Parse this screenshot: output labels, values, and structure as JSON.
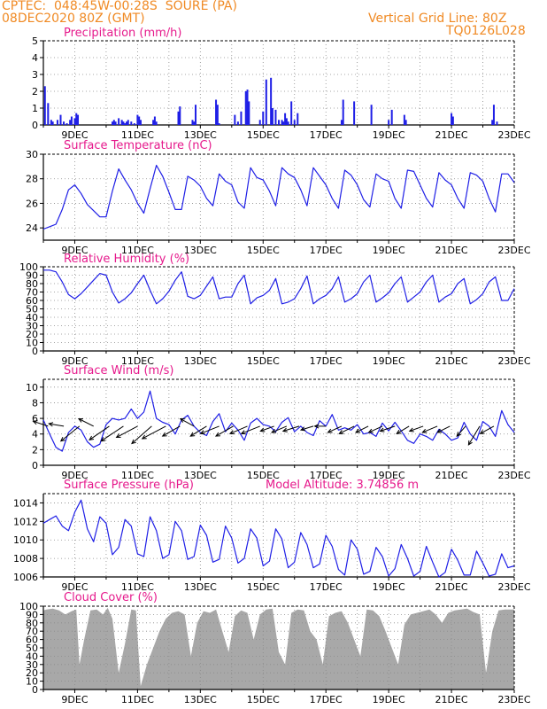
{
  "header": {
    "line1": "CPTEC:  048:45W-00:28S  SOURE (PA)",
    "line2": "08DEC2020 80Z (GMT)",
    "right1": "Vertical Grid Line: 80Z",
    "right2": "TQ0126L028"
  },
  "colors": {
    "series": "#1f1fe6",
    "title": "#e61a8c",
    "header": "#f08a24",
    "cloud": "#a8a8a8",
    "grid": "#8a8a8a"
  },
  "chart_data": [
    {
      "type": "bar",
      "title": "Precipitation (mm/h)",
      "xlabel": "",
      "ylabel": "",
      "x_tick_labels": [
        "9DEC",
        "11DEC",
        "13DEC",
        "15DEC",
        "17DEC",
        "19DEC",
        "21DEC",
        "23DEC"
      ],
      "ylim": [
        0,
        5
      ],
      "y_ticks": [
        0,
        1,
        2,
        3,
        4,
        5
      ],
      "grid": true,
      "x": [
        0.05,
        0.15,
        0.25,
        0.3,
        0.45,
        0.55,
        0.65,
        0.75,
        0.85,
        0.9,
        1.0,
        1.05,
        1.1,
        2.2,
        2.25,
        2.3,
        2.4,
        2.5,
        2.55,
        2.6,
        2.65,
        2.7,
        2.8,
        2.9,
        3.0,
        3.05,
        3.1,
        3.5,
        3.55,
        3.6,
        4.3,
        4.35,
        4.75,
        4.8,
        4.85,
        5.5,
        5.55,
        5.6,
        6.1,
        6.2,
        6.3,
        6.45,
        6.5,
        6.55,
        6.9,
        7.0,
        7.1,
        7.25,
        7.3,
        7.4,
        7.5,
        7.6,
        7.65,
        7.7,
        7.75,
        7.8,
        7.9,
        8.0,
        8.1,
        9.5,
        9.55,
        9.9,
        10.45,
        11.0,
        11.1,
        11.5,
        11.55,
        13.0,
        13.05,
        14.3,
        14.35,
        14.45
      ],
      "values": [
        2.3,
        1.3,
        0.3,
        0.2,
        0.3,
        0.6,
        0.2,
        0.1,
        0.3,
        0.5,
        0.4,
        0.7,
        0.6,
        0.2,
        0.3,
        0.2,
        0.4,
        0.3,
        0.2,
        0.1,
        0.2,
        0.3,
        0.2,
        0.1,
        0.6,
        0.5,
        0.3,
        0.3,
        0.5,
        0.2,
        0.8,
        1.1,
        0.3,
        0.2,
        1.2,
        1.5,
        1.2,
        0.1,
        0.6,
        0.2,
        0.8,
        2.0,
        2.1,
        1.4,
        0.3,
        0.8,
        2.7,
        2.8,
        1.0,
        0.9,
        0.3,
        0.3,
        0.2,
        0.7,
        0.4,
        0.2,
        1.4,
        0.3,
        0.7,
        0.3,
        1.5,
        1.4,
        1.2,
        0.3,
        0.9,
        0.6,
        0.3,
        0.7,
        0.5,
        0.3,
        1.2,
        0.2
      ]
    },
    {
      "type": "line",
      "title": "Surface Temperature (nC)",
      "x_tick_labels": [
        "9DEC",
        "11DEC",
        "13DEC",
        "15DEC",
        "17DEC",
        "19DEC",
        "21DEC",
        "23DEC"
      ],
      "ylim": [
        23,
        30
      ],
      "y_ticks": [
        24,
        26,
        28,
        30
      ],
      "grid": true,
      "x": [
        0,
        0.2,
        0.4,
        0.6,
        0.8,
        1.0,
        1.2,
        1.4,
        1.6,
        1.8,
        2.0,
        2.2,
        2.4,
        2.6,
        2.8,
        3.0,
        3.2,
        3.4,
        3.6,
        3.8,
        4.0,
        4.2,
        4.4,
        4.6,
        4.8,
        5.0,
        5.2,
        5.4,
        5.6,
        5.8,
        6.0,
        6.2,
        6.4,
        6.6,
        6.8,
        7.0,
        7.2,
        7.4,
        7.6,
        7.8,
        8.0,
        8.2,
        8.4,
        8.6,
        8.8,
        9.0,
        9.2,
        9.4,
        9.6,
        9.8,
        10.0,
        10.2,
        10.4,
        10.6,
        10.8,
        11.0,
        11.2,
        11.4,
        11.6,
        11.8,
        12.0,
        12.2,
        12.4,
        12.6,
        12.8,
        13.0,
        13.2,
        13.4,
        13.6,
        13.8,
        14.0,
        14.2,
        14.4,
        14.6,
        14.8,
        15.0
      ],
      "values": [
        23.9,
        24.1,
        24.3,
        25.5,
        27.1,
        27.5,
        26.8,
        25.9,
        25.4,
        24.9,
        24.9,
        27.0,
        28.8,
        27.9,
        27.1,
        26.0,
        25.2,
        27.2,
        29.1,
        28.2,
        26.9,
        25.5,
        25.5,
        28.2,
        27.9,
        27.4,
        26.4,
        25.8,
        28.4,
        27.8,
        27.5,
        26.1,
        25.6,
        28.9,
        28.1,
        27.9,
        27.0,
        25.8,
        28.9,
        28.4,
        28.1,
        27.1,
        25.8,
        28.9,
        28.2,
        27.5,
        26.4,
        25.6,
        28.7,
        28.3,
        27.5,
        26.3,
        25.7,
        28.4,
        28.0,
        27.8,
        26.4,
        25.6,
        28.7,
        28.6,
        27.5,
        26.4,
        25.7,
        28.5,
        27.9,
        27.5,
        26.4,
        25.6,
        28.5,
        28.3,
        27.8,
        26.4,
        25.3,
        28.4,
        28.4,
        27.7
      ]
    },
    {
      "type": "line",
      "title": "Relative Humidity (%)",
      "x_tick_labels": [
        "9DEC",
        "11DEC",
        "13DEC",
        "15DEC",
        "17DEC",
        "19DEC",
        "21DEC",
        "23DEC"
      ],
      "ylim": [
        0,
        100
      ],
      "y_ticks": [
        0,
        10,
        20,
        30,
        40,
        50,
        60,
        70,
        80,
        90,
        100
      ],
      "grid": true,
      "x": [
        0,
        0.2,
        0.4,
        0.6,
        0.8,
        1.0,
        1.2,
        1.4,
        1.6,
        1.8,
        2.0,
        2.2,
        2.4,
        2.6,
        2.8,
        3.0,
        3.2,
        3.4,
        3.6,
        3.8,
        4.0,
        4.2,
        4.4,
        4.6,
        4.8,
        5.0,
        5.2,
        5.4,
        5.6,
        5.8,
        6.0,
        6.2,
        6.4,
        6.6,
        6.8,
        7.0,
        7.2,
        7.4,
        7.6,
        7.8,
        8.0,
        8.2,
        8.4,
        8.6,
        8.8,
        9.0,
        9.2,
        9.4,
        9.6,
        9.8,
        10.0,
        10.2,
        10.4,
        10.6,
        10.8,
        11.0,
        11.2,
        11.4,
        11.6,
        11.8,
        12.0,
        12.2,
        12.4,
        12.6,
        12.8,
        13.0,
        13.2,
        13.4,
        13.6,
        13.8,
        14.0,
        14.2,
        14.4,
        14.6,
        14.8,
        15.0
      ],
      "values": [
        96,
        96,
        94,
        82,
        67,
        62,
        68,
        76,
        84,
        92,
        90,
        70,
        57,
        62,
        69,
        80,
        90,
        72,
        56,
        62,
        71,
        84,
        94,
        65,
        62,
        66,
        77,
        88,
        62,
        64,
        64,
        80,
        90,
        56,
        63,
        66,
        72,
        86,
        56,
        58,
        62,
        74,
        89,
        56,
        62,
        66,
        74,
        88,
        58,
        62,
        68,
        82,
        90,
        58,
        63,
        69,
        80,
        88,
        58,
        64,
        70,
        82,
        90,
        58,
        64,
        68,
        80,
        86,
        56,
        61,
        68,
        82,
        88,
        60,
        60,
        74
      ]
    },
    {
      "type": "line",
      "title": "Surface Wind (m/s)",
      "x_tick_labels": [
        "9DEC",
        "11DEC",
        "13DEC",
        "15DEC",
        "17DEC",
        "19DEC",
        "21DEC",
        "23DEC"
      ],
      "ylim": [
        0,
        11
      ],
      "y_ticks": [
        0,
        2,
        4,
        6,
        8,
        10
      ],
      "grid": true,
      "x": [
        0,
        0.2,
        0.4,
        0.6,
        0.8,
        1.0,
        1.2,
        1.4,
        1.6,
        1.8,
        2.0,
        2.2,
        2.4,
        2.6,
        2.8,
        3.0,
        3.2,
        3.4,
        3.6,
        3.8,
        4.0,
        4.2,
        4.4,
        4.6,
        4.8,
        5.0,
        5.2,
        5.4,
        5.6,
        5.8,
        6.0,
        6.2,
        6.4,
        6.6,
        6.8,
        7.0,
        7.2,
        7.4,
        7.6,
        7.8,
        8.0,
        8.2,
        8.4,
        8.6,
        8.8,
        9.0,
        9.2,
        9.4,
        9.6,
        9.8,
        10.0,
        10.2,
        10.4,
        10.6,
        10.8,
        11.0,
        11.2,
        11.4,
        11.6,
        11.8,
        12.0,
        12.2,
        12.4,
        12.6,
        12.8,
        13.0,
        13.2,
        13.4,
        13.6,
        13.8,
        14.0,
        14.2,
        14.4,
        14.6,
        14.8,
        15.0
      ],
      "values": [
        5.8,
        4.0,
        2.3,
        1.8,
        4.2,
        5.0,
        4.5,
        3.0,
        2.3,
        2.7,
        5.2,
        6.0,
        5.8,
        6.0,
        7.2,
        6.0,
        6.8,
        9.5,
        6.0,
        5.5,
        5.2,
        4.0,
        5.8,
        6.4,
        5.0,
        4.2,
        3.8,
        5.6,
        6.6,
        4.3,
        5.4,
        4.5,
        3.2,
        5.4,
        6.0,
        5.2,
        5.0,
        4.3,
        5.5,
        6.1,
        4.3,
        5.0,
        4.2,
        3.8,
        5.7,
        5.0,
        6.5,
        4.5,
        4.8,
        4.5,
        5.2,
        4.0,
        4.2,
        3.7,
        5.4,
        4.4,
        5.5,
        4.4,
        3.2,
        2.8,
        4.0,
        3.7,
        3.2,
        4.6,
        4.0,
        3.2,
        3.5,
        5.5,
        4.0,
        3.2,
        5.6,
        5.0,
        3.7,
        7.0,
        5.2,
        4.2
      ],
      "arrows": [
        {
          "x": 0.15,
          "u": 1.2,
          "v": 0.4
        },
        {
          "x": 0.65,
          "u": 1.2,
          "v": 0.2
        },
        {
          "x": 1.15,
          "u": 1.5,
          "v": -1.2
        },
        {
          "x": 1.6,
          "u": 1.2,
          "v": 0.6
        },
        {
          "x": 2.1,
          "u": 1.6,
          "v": -1.1
        },
        {
          "x": 2.55,
          "u": 1.8,
          "v": -1.2
        },
        {
          "x": 3.0,
          "u": 1.7,
          "v": -0.9
        },
        {
          "x": 3.45,
          "u": 1.6,
          "v": -1.4
        },
        {
          "x": 3.9,
          "u": 1.9,
          "v": -1.0
        },
        {
          "x": 4.35,
          "u": 1.4,
          "v": -0.8
        },
        {
          "x": 4.8,
          "u": 1.1,
          "v": 0.6
        },
        {
          "x": 5.2,
          "u": 1.3,
          "v": -0.8
        },
        {
          "x": 5.6,
          "u": 1.5,
          "v": -0.6
        },
        {
          "x": 6.05,
          "u": 1.4,
          "v": -0.8
        },
        {
          "x": 6.5,
          "u": 1.4,
          "v": -0.6
        },
        {
          "x": 6.9,
          "u": 1.5,
          "v": -0.6
        },
        {
          "x": 7.35,
          "u": 1.1,
          "v": -0.4
        },
        {
          "x": 7.75,
          "u": 1.2,
          "v": -0.5
        },
        {
          "x": 8.15,
          "u": 1.3,
          "v": -0.4
        },
        {
          "x": 8.6,
          "u": 1.0,
          "v": -0.3
        },
        {
          "x": 9.0,
          "u": 0.9,
          "v": 0.0
        },
        {
          "x": 9.5,
          "u": 1.1,
          "v": -0.5
        },
        {
          "x": 9.9,
          "u": 1.2,
          "v": -0.6
        },
        {
          "x": 10.35,
          "u": 1.0,
          "v": -0.5
        },
        {
          "x": 10.8,
          "u": 1.1,
          "v": -0.5
        },
        {
          "x": 11.2,
          "u": 1.2,
          "v": -0.4
        },
        {
          "x": 11.65,
          "u": 1.0,
          "v": -0.6
        },
        {
          "x": 12.1,
          "u": 1.1,
          "v": -0.4
        },
        {
          "x": 12.55,
          "u": 1.2,
          "v": -0.5
        },
        {
          "x": 12.95,
          "u": 1.0,
          "v": -0.5
        },
        {
          "x": 13.45,
          "u": 0.7,
          "v": -0.8
        },
        {
          "x": 13.9,
          "u": 0.9,
          "v": -1.5
        },
        {
          "x": 14.35,
          "u": 1.1,
          "v": -0.6
        }
      ]
    },
    {
      "type": "line",
      "title": "Surface Pressure (hPa)",
      "annotation": "Model Altitude: 3.74856 m",
      "x_tick_labels": [
        "9DEC",
        "11DEC",
        "13DEC",
        "15DEC",
        "17DEC",
        "19DEC",
        "21DEC",
        "23DEC"
      ],
      "ylim": [
        1006,
        1015
      ],
      "y_ticks": [
        1006,
        1008,
        1010,
        1012,
        1014
      ],
      "grid": true,
      "x": [
        0,
        0.2,
        0.4,
        0.6,
        0.8,
        1.0,
        1.2,
        1.4,
        1.6,
        1.8,
        2.0,
        2.2,
        2.4,
        2.6,
        2.8,
        3.0,
        3.2,
        3.4,
        3.6,
        3.8,
        4.0,
        4.2,
        4.4,
        4.6,
        4.8,
        5.0,
        5.2,
        5.4,
        5.6,
        5.8,
        6.0,
        6.2,
        6.4,
        6.6,
        6.8,
        7.0,
        7.2,
        7.4,
        7.6,
        7.8,
        8.0,
        8.2,
        8.4,
        8.6,
        8.8,
        9.0,
        9.2,
        9.4,
        9.6,
        9.8,
        10.0,
        10.2,
        10.4,
        10.6,
        10.8,
        11.0,
        11.2,
        11.4,
        11.6,
        11.8,
        12.0,
        12.2,
        12.4,
        12.6,
        12.8,
        13.0,
        13.2,
        13.4,
        13.6,
        13.8,
        14.0,
        14.2,
        14.4,
        14.6,
        14.8,
        15.0
      ],
      "values": [
        1011.8,
        1012.2,
        1012.6,
        1011.5,
        1011.0,
        1013.0,
        1014.3,
        1011.2,
        1009.8,
        1012.5,
        1011.8,
        1008.4,
        1009.2,
        1012.2,
        1011.5,
        1008.5,
        1008.2,
        1012.5,
        1011.0,
        1008.0,
        1008.4,
        1012.0,
        1011.0,
        1007.9,
        1008.2,
        1011.6,
        1010.5,
        1007.6,
        1007.9,
        1011.5,
        1010.2,
        1007.5,
        1008.0,
        1011.2,
        1010.2,
        1007.2,
        1007.7,
        1011.2,
        1010.1,
        1007.0,
        1007.6,
        1010.8,
        1009.5,
        1007.0,
        1007.4,
        1010.5,
        1009.3,
        1006.8,
        1006.2,
        1010.0,
        1009.0,
        1006.3,
        1006.6,
        1009.2,
        1008.2,
        1006.1,
        1006.9,
        1009.5,
        1008.0,
        1006.1,
        1006.6,
        1009.3,
        1007.6,
        1006.0,
        1006.5,
        1009.0,
        1007.8,
        1006.2,
        1006.2,
        1008.8,
        1007.5,
        1006.1,
        1006.3,
        1008.5,
        1007.0,
        1007.2
      ]
    },
    {
      "type": "area",
      "title": "Cloud Cover (%)",
      "x_tick_labels": [
        "9DEC",
        "11DEC",
        "13DEC",
        "15DEC",
        "17DEC",
        "19DEC",
        "21DEC",
        "23DEC"
      ],
      "ylim": [
        0,
        100
      ],
      "y_ticks": [
        0,
        10,
        20,
        30,
        40,
        50,
        60,
        70,
        80,
        90,
        100
      ],
      "grid": true,
      "x": [
        0,
        0.1,
        0.3,
        0.5,
        0.7,
        0.9,
        1.05,
        1.15,
        1.3,
        1.5,
        1.7,
        1.9,
        2.05,
        2.2,
        2.4,
        2.6,
        2.8,
        2.95,
        3.1,
        3.3,
        3.5,
        3.7,
        3.9,
        4.1,
        4.3,
        4.5,
        4.7,
        4.9,
        5.1,
        5.3,
        5.5,
        5.7,
        5.9,
        6.1,
        6.3,
        6.5,
        6.7,
        6.9,
        7.1,
        7.3,
        7.5,
        7.7,
        7.9,
        8.1,
        8.3,
        8.5,
        8.7,
        8.9,
        9.1,
        9.3,
        9.5,
        9.7,
        9.9,
        10.1,
        10.3,
        10.5,
        10.7,
        10.9,
        11.1,
        11.3,
        11.5,
        11.7,
        11.9,
        12.1,
        12.3,
        12.5,
        12.7,
        12.9,
        13.1,
        13.3,
        13.5,
        13.7,
        13.9,
        14.1,
        14.3,
        14.5,
        14.7,
        14.9,
        15.0
      ],
      "values": [
        95,
        96,
        97,
        95,
        90,
        94,
        96,
        30,
        60,
        95,
        96,
        90,
        98,
        85,
        20,
        55,
        96,
        95,
        4,
        30,
        50,
        70,
        85,
        92,
        94,
        90,
        40,
        80,
        94,
        92,
        96,
        70,
        45,
        88,
        95,
        92,
        60,
        90,
        96,
        97,
        45,
        30,
        92,
        96,
        95,
        70,
        60,
        30,
        88,
        92,
        94,
        80,
        60,
        40,
        96,
        95,
        88,
        70,
        50,
        30,
        78,
        90,
        92,
        94,
        96,
        90,
        80,
        92,
        95,
        96,
        97,
        93,
        90,
        20,
        70,
        95,
        96,
        96,
        96
      ]
    }
  ]
}
